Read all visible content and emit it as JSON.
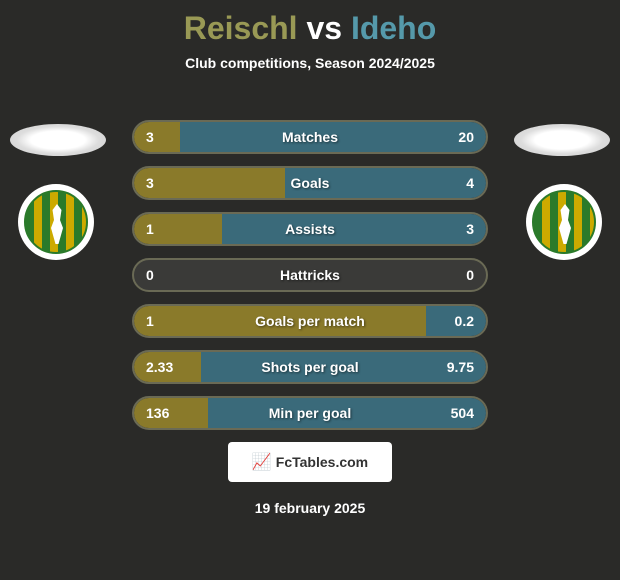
{
  "title": {
    "player_left": "Reischl",
    "vs": "vs",
    "player_right": "Ideho"
  },
  "subtitle": "Club competitions, Season 2024/2025",
  "colors": {
    "background": "#2a2a28",
    "player_left_color": "#999955",
    "player_right_color": "#5599aa",
    "bar_left": "#8a7a2a",
    "bar_right": "#3a6a7a",
    "bar_bg": "#3a3a38",
    "bar_border": "#6a6a55",
    "text": "#ffffff"
  },
  "stats": [
    {
      "label": "Matches",
      "left_value": "3",
      "right_value": "20",
      "left_pct": 13,
      "right_pct": 87
    },
    {
      "label": "Goals",
      "left_value": "3",
      "right_value": "4",
      "left_pct": 43,
      "right_pct": 57
    },
    {
      "label": "Assists",
      "left_value": "1",
      "right_value": "3",
      "left_pct": 25,
      "right_pct": 75
    },
    {
      "label": "Hattricks",
      "left_value": "0",
      "right_value": "0",
      "left_pct": 0,
      "right_pct": 0
    },
    {
      "label": "Goals per match",
      "left_value": "1",
      "right_value": "0.2",
      "left_pct": 83,
      "right_pct": 17
    },
    {
      "label": "Shots per goal",
      "left_value": "2.33",
      "right_value": "9.75",
      "left_pct": 19,
      "right_pct": 81
    },
    {
      "label": "Min per goal",
      "left_value": "136",
      "right_value": "504",
      "left_pct": 21,
      "right_pct": 79
    }
  ],
  "footer": {
    "brand": "FcTables.com",
    "date": "19 february 2025"
  }
}
